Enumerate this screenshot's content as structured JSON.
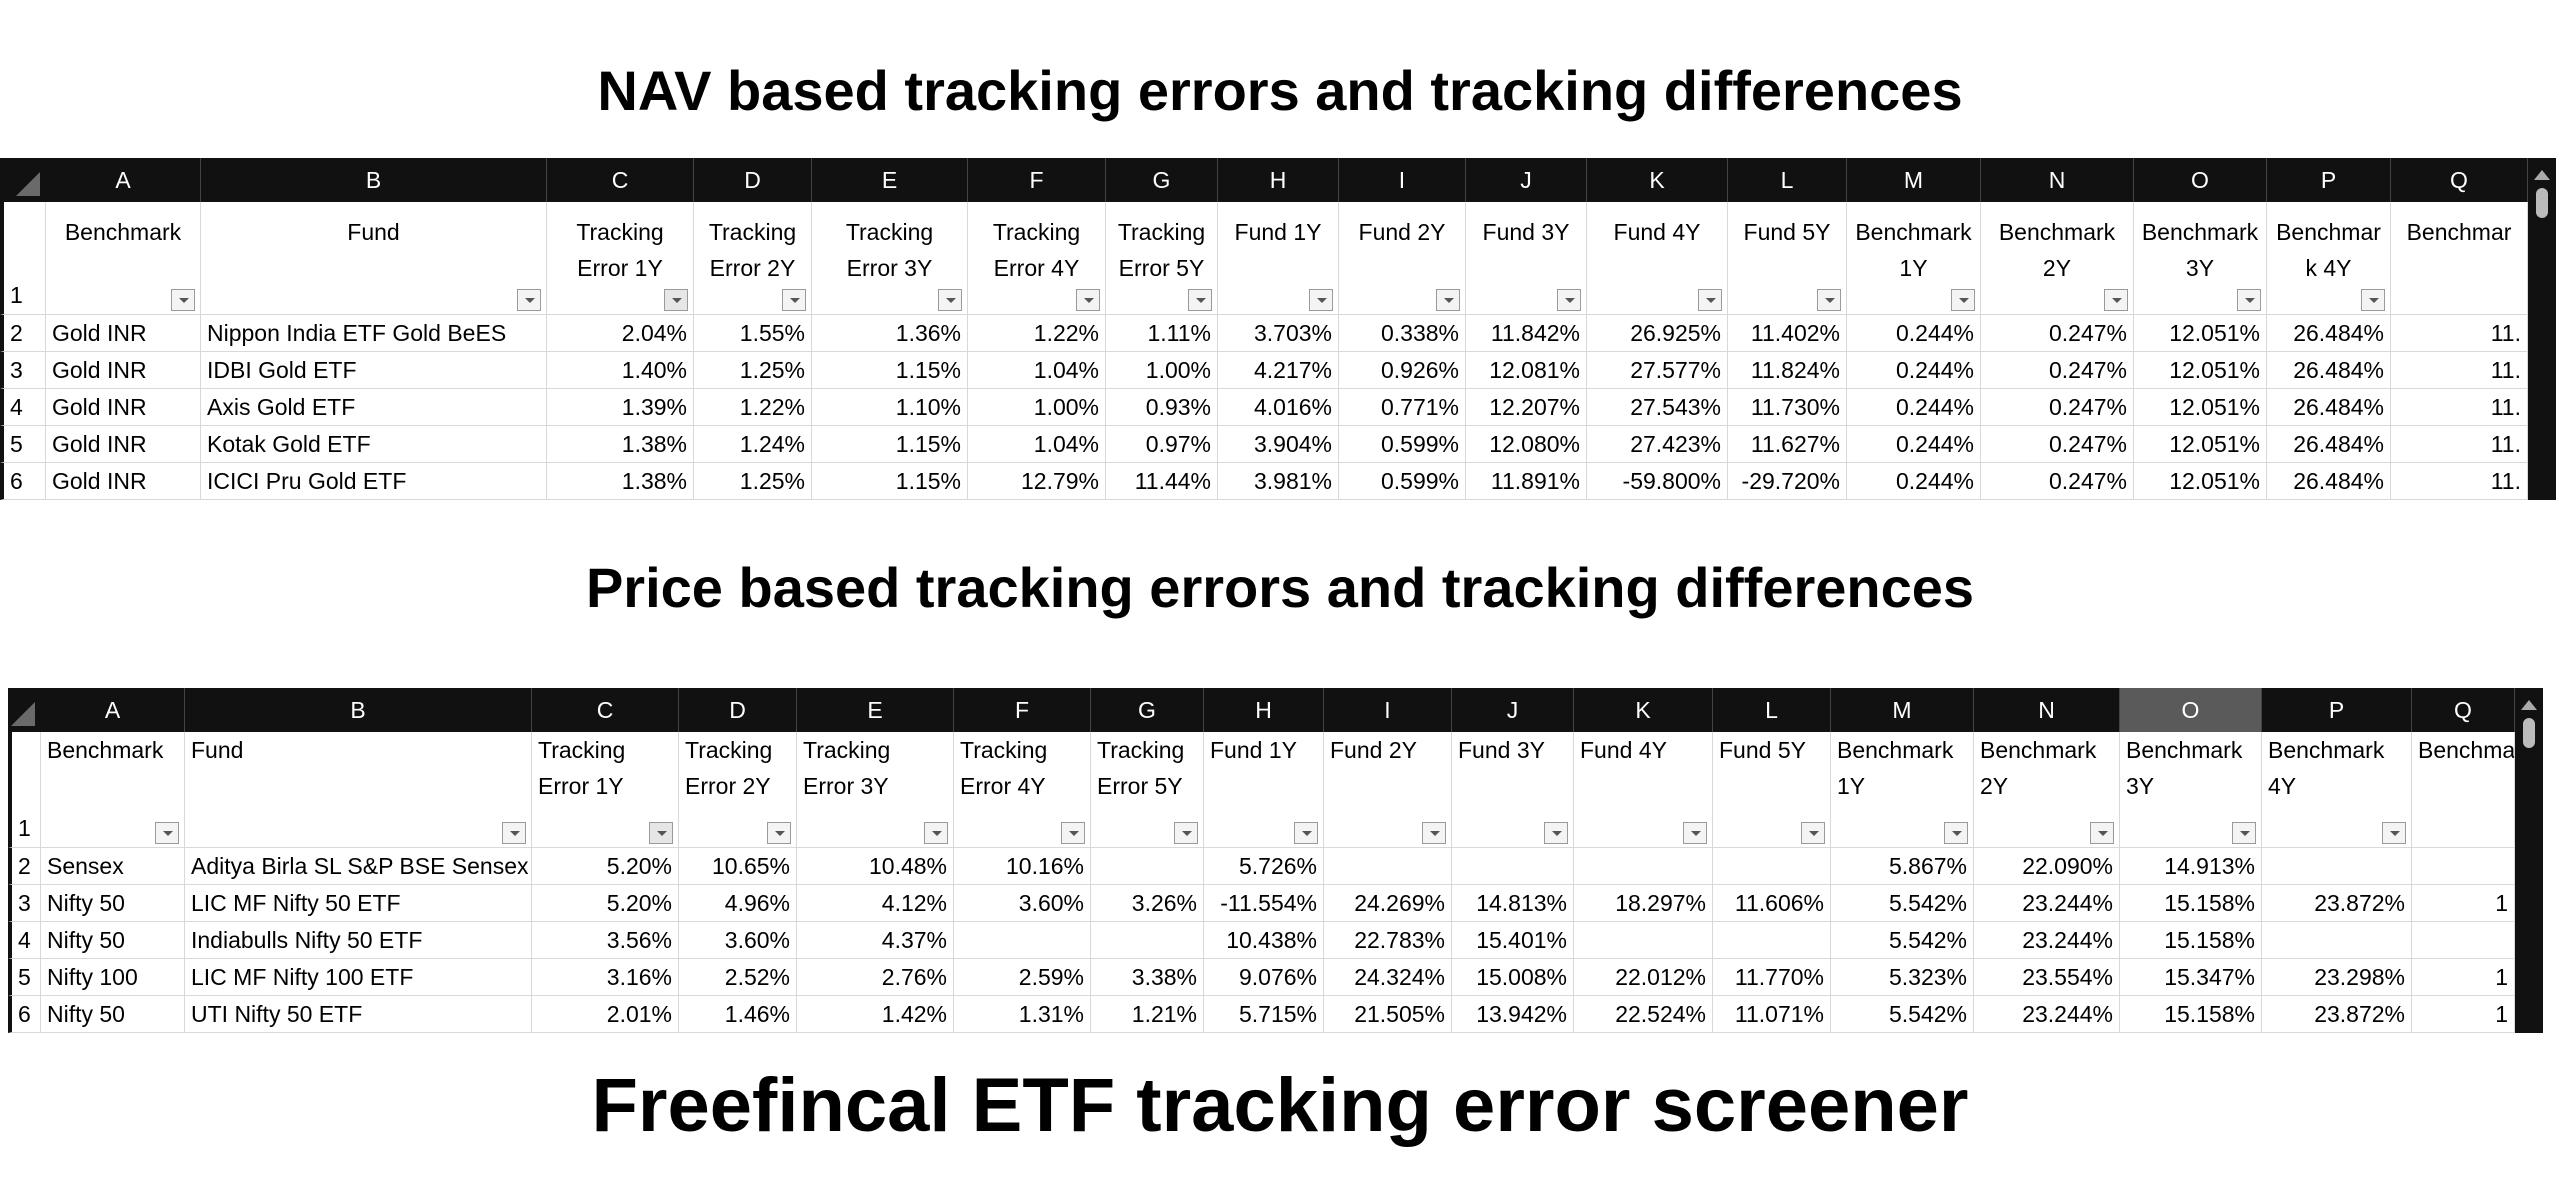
{
  "titles": {
    "nav": "NAV based tracking errors and tracking differences",
    "price": "Price based tracking errors and tracking differences",
    "footer": "Freefincal ETF tracking error screener"
  },
  "nav_table": {
    "columns": [
      "A",
      "B",
      "C",
      "D",
      "E",
      "F",
      "G",
      "H",
      "I",
      "J",
      "K",
      "L",
      "M",
      "N",
      "O",
      "P",
      "Q"
    ],
    "row_numbers": [
      1,
      2,
      3,
      4,
      5,
      6
    ],
    "header": [
      "Benchmark",
      "Fund",
      "Tracking Error 1Y",
      "Tracking Error 2Y",
      "Tracking Error 3Y",
      "Tracking Error 4Y",
      "Tracking Error 5Y",
      "Fund 1Y",
      "Fund 2Y",
      "Fund 3Y",
      "Fund 4Y",
      "Fund 5Y",
      "Benchmark 1Y",
      "Benchmark 2Y",
      "Benchmark 3Y",
      "Benchmark 4Y",
      "Benchmar"
    ],
    "rows": [
      [
        "Gold INR",
        "Nippon India ETF Gold BeES",
        "2.04%",
        "1.55%",
        "1.36%",
        "1.22%",
        "1.11%",
        "3.703%",
        "0.338%",
        "11.842%",
        "26.925%",
        "11.402%",
        "0.244%",
        "0.247%",
        "12.051%",
        "26.484%",
        "11."
      ],
      [
        "Gold INR",
        "IDBI Gold ETF",
        "1.40%",
        "1.25%",
        "1.15%",
        "1.04%",
        "1.00%",
        "4.217%",
        "0.926%",
        "12.081%",
        "27.577%",
        "11.824%",
        "0.244%",
        "0.247%",
        "12.051%",
        "26.484%",
        "11."
      ],
      [
        "Gold INR",
        "Axis Gold ETF",
        "1.39%",
        "1.22%",
        "1.10%",
        "1.00%",
        "0.93%",
        "4.016%",
        "0.771%",
        "12.207%",
        "27.543%",
        "11.730%",
        "0.244%",
        "0.247%",
        "12.051%",
        "26.484%",
        "11."
      ],
      [
        "Gold INR",
        "Kotak Gold ETF",
        "1.38%",
        "1.24%",
        "1.15%",
        "1.04%",
        "0.97%",
        "3.904%",
        "0.599%",
        "12.080%",
        "27.423%",
        "11.627%",
        "0.244%",
        "0.247%",
        "12.051%",
        "26.484%",
        "11."
      ],
      [
        "Gold INR",
        "ICICI Pru Gold ETF",
        "1.38%",
        "1.25%",
        "1.15%",
        "12.79%",
        "11.44%",
        "3.981%",
        "0.599%",
        "11.891%",
        "-59.800%",
        "-29.720%",
        "0.244%",
        "0.247%",
        "12.051%",
        "26.484%",
        "11."
      ]
    ]
  },
  "price_table": {
    "columns": [
      "A",
      "B",
      "C",
      "D",
      "E",
      "F",
      "G",
      "H",
      "I",
      "J",
      "K",
      "L",
      "M",
      "N",
      "O",
      "P",
      "Q"
    ],
    "row_numbers": [
      1,
      2,
      3,
      4,
      5,
      6
    ],
    "header": [
      "Benchmark",
      "Fund",
      "Tracking Error 1Y",
      "Tracking Error 2Y",
      "Tracking Error 3Y",
      "Tracking Error 4Y",
      "Tracking Error 5Y",
      "Fund 1Y",
      "Fund 2Y",
      "Fund 3Y",
      "Fund 4Y",
      "Fund 5Y",
      "Benchmark 1Y",
      "Benchmark 2Y",
      "Benchmark 3Y",
      "Benchmark 4Y",
      "Benchma"
    ],
    "rows": [
      [
        "Sensex",
        "Aditya Birla SL S&P BSE Sensex",
        "5.20%",
        "10.65%",
        "10.48%",
        "10.16%",
        null,
        "5.726%",
        null,
        null,
        null,
        null,
        "5.867%",
        "22.090%",
        "14.913%",
        null,
        null
      ],
      [
        "Nifty 50",
        "LIC MF Nifty 50 ETF",
        "5.20%",
        "4.96%",
        "4.12%",
        "3.60%",
        "3.26%",
        "-11.554%",
        "24.269%",
        "14.813%",
        "18.297%",
        "11.606%",
        "5.542%",
        "23.244%",
        "15.158%",
        "23.872%",
        "1"
      ],
      [
        "Nifty 50",
        "Indiabulls Nifty 50 ETF",
        "3.56%",
        "3.60%",
        "4.37%",
        null,
        null,
        "10.438%",
        "22.783%",
        "15.401%",
        null,
        null,
        "5.542%",
        "23.244%",
        "15.158%",
        null,
        null
      ],
      [
        "Nifty 100",
        "LIC MF Nifty 100 ETF",
        "3.16%",
        "2.52%",
        "2.76%",
        "2.59%",
        "3.38%",
        "9.076%",
        "24.324%",
        "15.008%",
        "22.012%",
        "11.770%",
        "5.323%",
        "23.554%",
        "15.347%",
        "23.298%",
        "1"
      ],
      [
        "Nifty 50",
        "UTI Nifty 50 ETF",
        "2.01%",
        "1.46%",
        "1.42%",
        "1.31%",
        "1.21%",
        "5.715%",
        "21.505%",
        "13.942%",
        "22.524%",
        "11.071%",
        "5.542%",
        "23.244%",
        "15.158%",
        "23.872%",
        "1"
      ]
    ]
  }
}
